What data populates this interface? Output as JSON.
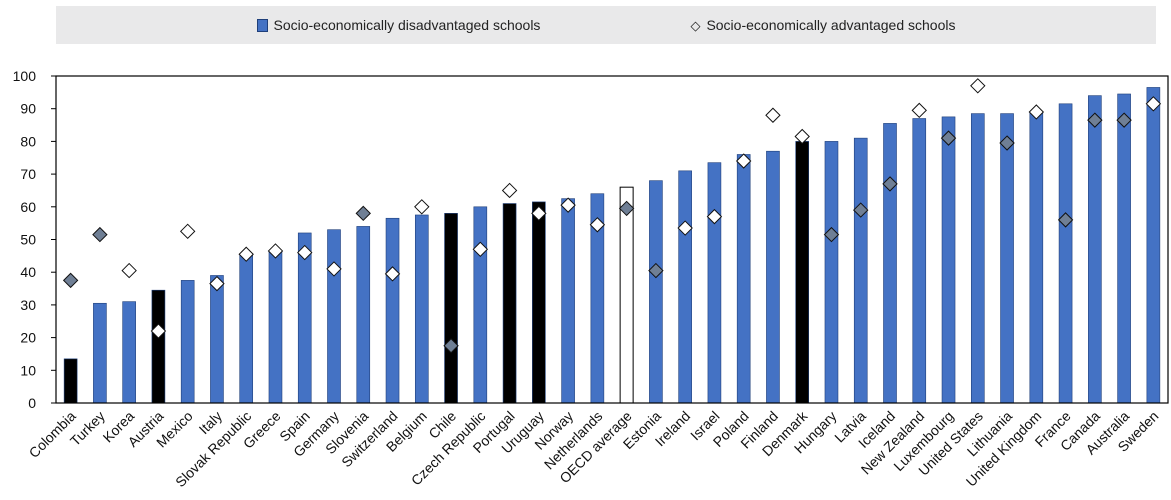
{
  "legend": {
    "disadvantaged": "Socio-economically disadvantaged schools",
    "advantaged": "Socio-economically advantaged schools"
  },
  "colors": {
    "bar_blue": "#4472c4",
    "bar_black": "#000000",
    "bar_white": "#ffffff",
    "diamond_white": "#ffffff",
    "diamond_grey": "#6f7f95",
    "legend_bg": "#e9e9ea"
  },
  "chart_data": {
    "type": "bar",
    "ylim": [
      0,
      100
    ],
    "yticks": [
      0,
      10,
      20,
      30,
      40,
      50,
      60,
      70,
      80,
      90,
      100
    ],
    "categories": [
      "Colombia",
      "Turkey",
      "Korea",
      "Austria",
      "Mexico",
      "Italy",
      "Slovak Republic",
      "Greece",
      "Spain",
      "Germany",
      "Slovenia",
      "Switzerland",
      "Belgium",
      "Chile",
      "Czech Republic",
      "Portugal",
      "Uruguay",
      "Norway",
      "Netherlands",
      "OECD average",
      "Estonia",
      "Ireland",
      "Israel",
      "Poland",
      "Finland",
      "Denmark",
      "Hungary",
      "Latvia",
      "Iceland",
      "New Zealand",
      "Luxembourg",
      "United States",
      "Lithuania",
      "United Kingdom",
      "France",
      "Canada",
      "Australia",
      "Sweden"
    ],
    "series": [
      {
        "name": "Socio-economically disadvantaged schools",
        "marker": "bar",
        "values": [
          13.5,
          30.5,
          31,
          34.5,
          37.5,
          39,
          45.5,
          46.5,
          52,
          53,
          54,
          56.5,
          57.5,
          58,
          60,
          61,
          61.5,
          62.5,
          64,
          66,
          68,
          71,
          73.5,
          76,
          77,
          80,
          80,
          81,
          85.5,
          87,
          87.5,
          88.5,
          88.5,
          89,
          91.5,
          94,
          94.5,
          96.5
        ],
        "fill": [
          "black",
          "blue",
          "blue",
          "black",
          "blue",
          "blue",
          "blue",
          "blue",
          "blue",
          "blue",
          "blue",
          "blue",
          "blue",
          "black",
          "blue",
          "black",
          "black",
          "blue",
          "blue",
          "white",
          "blue",
          "blue",
          "blue",
          "blue",
          "blue",
          "black",
          "blue",
          "blue",
          "blue",
          "blue",
          "blue",
          "blue",
          "blue",
          "blue",
          "blue",
          "blue",
          "blue",
          "blue"
        ]
      },
      {
        "name": "Socio-economically advantaged schools",
        "marker": "diamond",
        "values": [
          37.5,
          51.5,
          40.5,
          22,
          52.5,
          36.5,
          45.5,
          46.5,
          46,
          41,
          58,
          39.5,
          60,
          17.5,
          47,
          65,
          58,
          60.5,
          54.5,
          59.5,
          40.5,
          53.5,
          57,
          74,
          88,
          81.5,
          51.5,
          59,
          67,
          89.5,
          81,
          97,
          79.5,
          89,
          56,
          86.5,
          86.5,
          91.5
        ],
        "fill": [
          "grey",
          "grey",
          "white",
          "white",
          "white",
          "white",
          "white",
          "white",
          "white",
          "white",
          "grey",
          "white",
          "white",
          "grey",
          "white",
          "white",
          "white",
          "white",
          "white",
          "grey",
          "grey",
          "white",
          "white",
          "white",
          "white",
          "white",
          "grey",
          "grey",
          "grey",
          "white",
          "grey",
          "white",
          "grey",
          "white",
          "grey",
          "grey",
          "grey",
          "white"
        ]
      }
    ]
  }
}
